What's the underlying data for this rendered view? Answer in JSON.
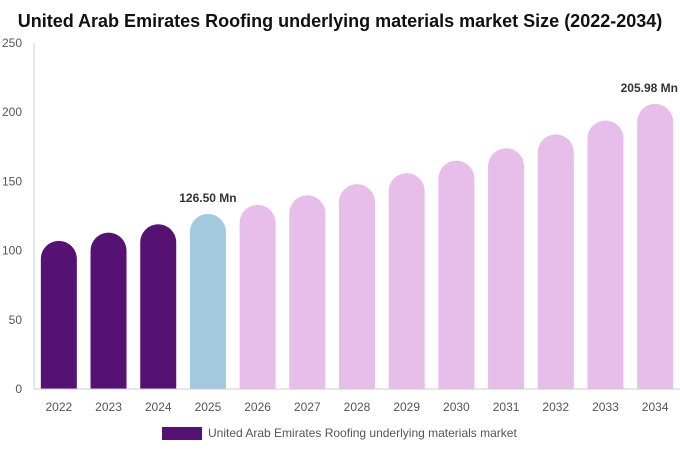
{
  "chart_data": {
    "type": "bar",
    "title": "United Arab Emirates Roofing underlying materials market Size (2022-2034)",
    "xlabel": "",
    "ylabel": "",
    "ylim": [
      0,
      250
    ],
    "yticks": [
      0,
      50,
      100,
      150,
      200,
      250
    ],
    "grid": false,
    "legend_position": "bottom-center",
    "categories": [
      "2022",
      "2023",
      "2024",
      "2025",
      "2026",
      "2027",
      "2028",
      "2029",
      "2030",
      "2031",
      "2032",
      "2033",
      "2034"
    ],
    "series": [
      {
        "name": "United Arab Emirates Roofing underlying materials market",
        "values": [
          107,
          113,
          119,
          126.5,
          133,
          140,
          148,
          156,
          165,
          174,
          184,
          194,
          205.98
        ],
        "colors": [
          "#561273",
          "#561273",
          "#561273",
          "#a3c9de",
          "#e7bde9",
          "#e7bde9",
          "#e7bde9",
          "#e7bde9",
          "#e7bde9",
          "#e7bde9",
          "#e7bde9",
          "#e7bde9",
          "#e7bde9"
        ]
      }
    ],
    "data_labels": [
      {
        "category": "2025",
        "text": "126.50 Mn"
      },
      {
        "category": "2034",
        "text": "205.98 Mn"
      }
    ],
    "legend": {
      "label": "United Arab Emirates Roofing underlying materials market",
      "color": "#561273"
    },
    "axis_color": "#cccccc"
  }
}
